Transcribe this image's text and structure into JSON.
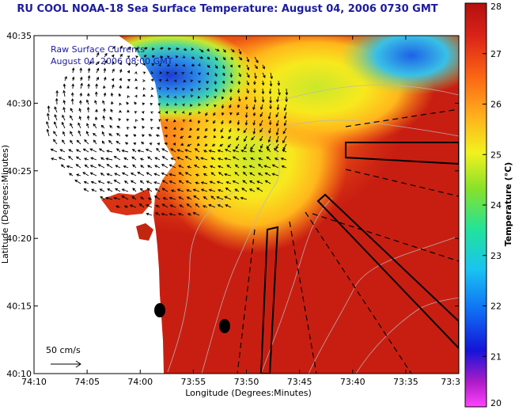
{
  "title": "RU COOL  NOAA-18  Sea Surface Temperature:  August 04, 2006 0730 GMT",
  "overlay": {
    "line1": "Raw Surface Currents",
    "line2": "August 04, 2006 08:00 GMT"
  },
  "scale_label": "50 cm/s",
  "x_axis": {
    "label": "Longitude (Degrees:Minutes)",
    "ticks": [
      "74:10",
      "74:05",
      "74:00",
      "73:55",
      "73:50",
      "73:45",
      "73:40",
      "73:35",
      "73:3"
    ]
  },
  "y_axis": {
    "label": "Latitude (Degrees:Minutes)",
    "ticks": [
      "40:35",
      "40:30",
      "40:25",
      "40:20",
      "40:15",
      "40:10"
    ]
  },
  "colorbar": {
    "label": "Temperature (°C)",
    "ticks": [
      "28",
      "27",
      "26",
      "25",
      "24",
      "23",
      "22",
      "21",
      "20"
    ],
    "range": [
      20,
      28
    ]
  },
  "colors": {
    "title": "#1c1c9e",
    "land": "#ffffff",
    "warm": "#cc1b10",
    "cool": "#1a3cc8"
  },
  "icons": {
    "vector_scale": "arrow-icon",
    "station_markers": "filled-circle-icon"
  }
}
